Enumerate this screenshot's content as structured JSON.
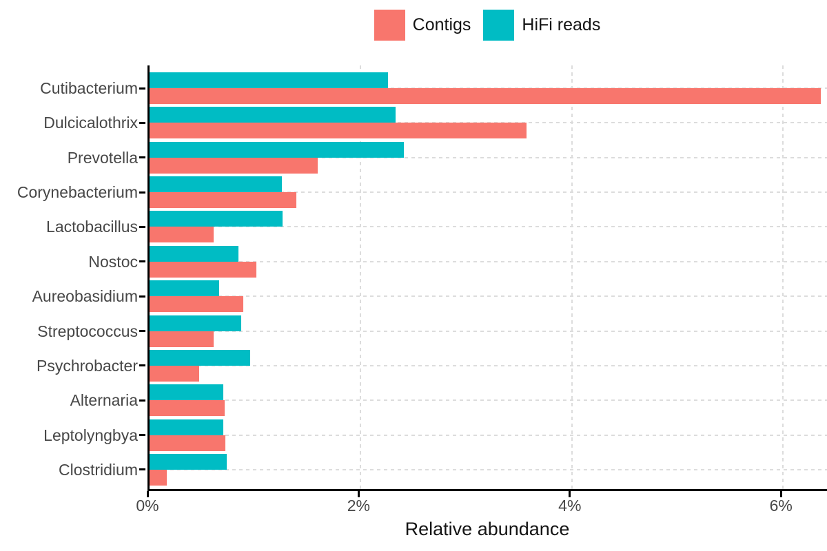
{
  "chart_data": {
    "type": "bar",
    "orientation": "horizontal",
    "title": "",
    "xlabel": "Relative abundance",
    "ylabel": "",
    "categories": [
      "Cutibacterium",
      "Dulcicalothrix",
      "Prevotella",
      "Corynebacterium",
      "Lactobacillus",
      "Nostoc",
      "Aureobasidium",
      "Streptococcus",
      "Psychrobacter",
      "Alternaria",
      "Leptolyngbya",
      "Clostridium"
    ],
    "series": [
      {
        "name": "Contigs",
        "color": "#F8766D",
        "values": [
          6.36,
          3.57,
          1.59,
          1.39,
          0.61,
          1.01,
          0.89,
          0.61,
          0.47,
          0.71,
          0.72,
          0.16
        ]
      },
      {
        "name": "HiFi reads",
        "color": "#00BCC4",
        "values": [
          2.26,
          2.33,
          2.41,
          1.25,
          1.26,
          0.84,
          0.66,
          0.87,
          0.95,
          0.7,
          0.7,
          0.73
        ]
      }
    ],
    "group_order_top_to_bottom": [
      "HiFi reads",
      "Contigs"
    ],
    "x_ticks": [
      {
        "label": "0%",
        "value": 0
      },
      {
        "label": "2%",
        "value": 2
      },
      {
        "label": "4%",
        "value": 4
      },
      {
        "label": "6%",
        "value": 6
      }
    ],
    "xlim": [
      0,
      6.44
    ],
    "grid": "dashed-major",
    "legend_position": "top-center",
    "colors": {
      "axis": "#000000",
      "gridline": "#dcdcdc",
      "tick_label": "#474747",
      "axis_title": "#141414"
    }
  }
}
